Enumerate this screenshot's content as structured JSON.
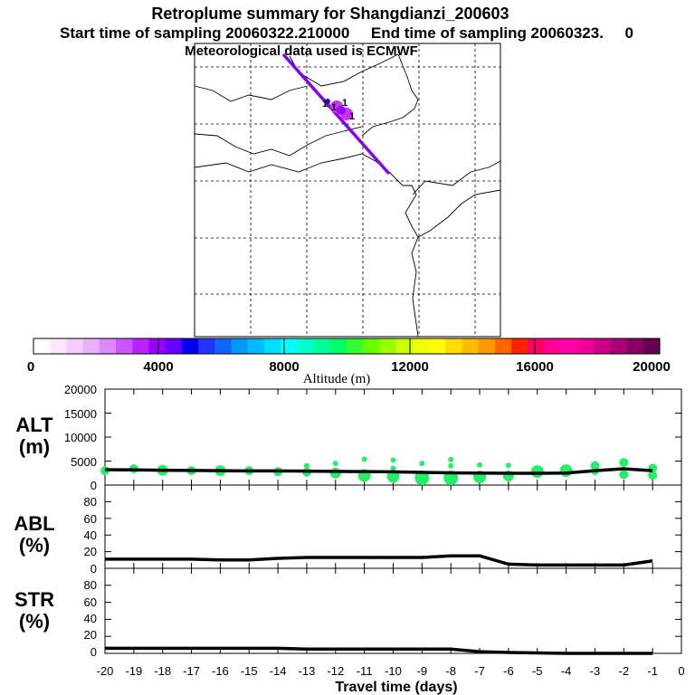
{
  "header": {
    "title": "Retroplume summary for Shangdianzi_200603",
    "sampling_line": "Start time of sampling 20060322.210000     End time of sampling 20060323.     0",
    "met_line": "Meteorological data used is ECMWF"
  },
  "colors": {
    "plume_purple": "#8800ee",
    "cluster_magenta": "#cc33ee",
    "green_marker": "#22ee66",
    "median_line": "#000000"
  },
  "chart_data": [
    {
      "type": "map",
      "panel": "retroplume-map",
      "gridlines": "dashed",
      "content": "Retroplume trajectory over East Asia, plume clusters colored by altitude"
    },
    {
      "type": "colorbar",
      "panel": "altitude-colorbar",
      "label": "Altitude (m)",
      "range": [
        0,
        20000
      ],
      "ticks": [
        "0",
        "4000",
        "8000",
        "12000",
        "16000",
        "20000"
      ],
      "colors": [
        "#ffffff",
        "#fde6ff",
        "#f6ccff",
        "#eab0ff",
        "#dd88ff",
        "#cc55ff",
        "#bb22ff",
        "#9900ff",
        "#6600ff",
        "#0000ee",
        "#2233ff",
        "#1166ff",
        "#0099ff",
        "#00bbff",
        "#00ddff",
        "#00ffff",
        "#00ffcc",
        "#00ff99",
        "#00ff66",
        "#33ff33",
        "#66ff00",
        "#99ff00",
        "#ccff00",
        "#eeff00",
        "#ffff00",
        "#ffdd00",
        "#ffbb00",
        "#ff9900",
        "#ff6600",
        "#ff2200",
        "#ff0066",
        "#ff0099",
        "#ff00aa",
        "#ee0099",
        "#cc0088",
        "#aa0077",
        "#880066",
        "#660055"
      ]
    },
    {
      "type": "line",
      "panel": "ALT",
      "ylabel": [
        "ALT",
        "(m)"
      ],
      "ylim": [
        0,
        20000
      ],
      "yticks": [
        "20000",
        "15000",
        "10000",
        "5000",
        "0"
      ],
      "x": [
        -20,
        -19,
        -18,
        -17,
        -16,
        -15,
        -14,
        -13,
        -12,
        -11,
        -10,
        -9,
        -8,
        -7,
        -6,
        -5,
        -4,
        -3,
        -2,
        -1
      ],
      "median": [
        3200,
        3150,
        3100,
        3050,
        3000,
        2950,
        2950,
        2900,
        2850,
        2800,
        2750,
        2650,
        2550,
        2500,
        2450,
        2450,
        2500,
        3000,
        3400,
        3000
      ],
      "scatter": [
        {
          "x": -20,
          "y": 3000,
          "s": 5
        },
        {
          "x": -19,
          "y": 3400,
          "s": 5
        },
        {
          "x": -18,
          "y": 3100,
          "s": 6
        },
        {
          "x": -17,
          "y": 3000,
          "s": 5
        },
        {
          "x": -16,
          "y": 3000,
          "s": 6
        },
        {
          "x": -15,
          "y": 3000,
          "s": 5
        },
        {
          "x": -14,
          "y": 2800,
          "s": 5
        },
        {
          "x": -13,
          "y": 4000,
          "s": 3
        },
        {
          "x": -13,
          "y": 2700,
          "s": 5
        },
        {
          "x": -12,
          "y": 4500,
          "s": 3
        },
        {
          "x": -12,
          "y": 2500,
          "s": 6
        },
        {
          "x": -11,
          "y": 5400,
          "s": 3
        },
        {
          "x": -11,
          "y": 2000,
          "s": 7
        },
        {
          "x": -10,
          "y": 5200,
          "s": 3
        },
        {
          "x": -10,
          "y": 3500,
          "s": 3
        },
        {
          "x": -10,
          "y": 1800,
          "s": 7
        },
        {
          "x": -9,
          "y": 4500,
          "s": 3
        },
        {
          "x": -9,
          "y": 1500,
          "s": 8
        },
        {
          "x": -8,
          "y": 5300,
          "s": 3
        },
        {
          "x": -8,
          "y": 4000,
          "s": 3
        },
        {
          "x": -8,
          "y": 1500,
          "s": 8
        },
        {
          "x": -7,
          "y": 4200,
          "s": 3
        },
        {
          "x": -7,
          "y": 1700,
          "s": 7
        },
        {
          "x": -6,
          "y": 4100,
          "s": 3
        },
        {
          "x": -6,
          "y": 1900,
          "s": 6
        },
        {
          "x": -5,
          "y": 2800,
          "s": 7
        },
        {
          "x": -4,
          "y": 3000,
          "s": 7
        },
        {
          "x": -3,
          "y": 4000,
          "s": 5
        },
        {
          "x": -3,
          "y": 2800,
          "s": 4
        },
        {
          "x": -2,
          "y": 4700,
          "s": 5
        },
        {
          "x": -2,
          "y": 2200,
          "s": 5
        },
        {
          "x": -1,
          "y": 3500,
          "s": 5
        },
        {
          "x": -1,
          "y": 2000,
          "s": 5
        }
      ]
    },
    {
      "type": "line",
      "panel": "ABL",
      "ylabel": [
        "ABL",
        "(%)"
      ],
      "ylim": [
        0,
        100
      ],
      "yticks": [
        "80",
        "60",
        "40",
        "20",
        "0"
      ],
      "x": [
        -20,
        -19,
        -18,
        -17,
        -16,
        -15,
        -14,
        -13,
        -12,
        -11,
        -10,
        -9,
        -8,
        -7,
        -6,
        -5,
        -4,
        -3,
        -2,
        -1
      ],
      "values": [
        11,
        11,
        11,
        11,
        10,
        10,
        12,
        13,
        13,
        13,
        13,
        13,
        15,
        15,
        5,
        4,
        4,
        4,
        4,
        9
      ]
    },
    {
      "type": "line",
      "panel": "STR",
      "ylabel": [
        "STR",
        "(%)"
      ],
      "ylim": [
        0,
        100
      ],
      "yticks": [
        "80",
        "60",
        "40",
        "20",
        "0"
      ],
      "x": [
        -20,
        -19,
        -18,
        -17,
        -16,
        -15,
        -14,
        -13,
        -12,
        -11,
        -10,
        -9,
        -8,
        -7,
        -6,
        -5,
        -4,
        -3,
        -2,
        -1
      ],
      "values": [
        6,
        6,
        6,
        6,
        6,
        6,
        6,
        5,
        5,
        5,
        5,
        5,
        5,
        2,
        1,
        0.5,
        0,
        0,
        0,
        0
      ]
    },
    {
      "type": "axis",
      "panel": "x-axis",
      "xlabel": "Travel time (days)",
      "xlim": [
        -20,
        0
      ],
      "xticks": [
        "-20",
        "-19",
        "-18",
        "-17",
        "-16",
        "-15",
        "-14",
        "-13",
        "-12",
        "-11",
        "-10",
        "-9",
        "-8",
        "-7",
        "-6",
        "-5",
        "-4",
        "-3",
        "-2",
        "-1",
        "0"
      ]
    }
  ]
}
